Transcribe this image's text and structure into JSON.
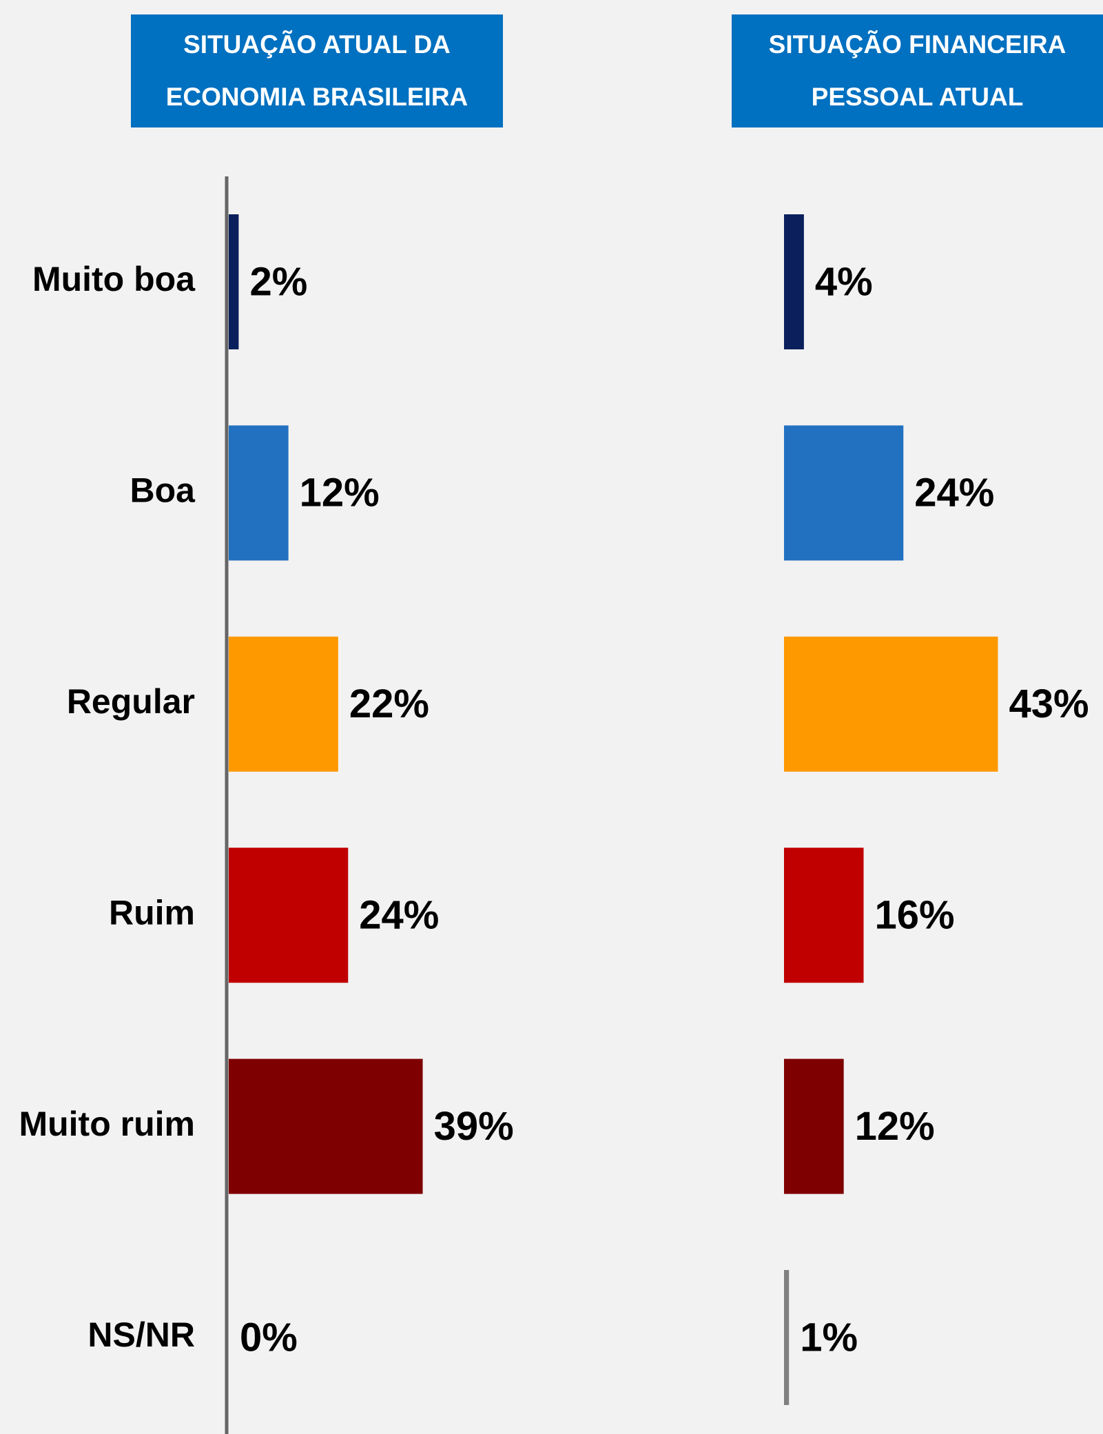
{
  "chart_data": {
    "type": "bar",
    "orientation": "horizontal",
    "categories": [
      "Muito boa",
      "Boa",
      "Regular",
      "Ruim",
      "Muito ruim",
      "NS/NR"
    ],
    "colors": [
      "#0a1f5c",
      "#2271c1",
      "#ff9900",
      "#c00000",
      "#7f0000",
      "#808080"
    ],
    "series": [
      {
        "name": "SITUAÇÃO ATUAL DA ECONOMIA BRASILEIRA",
        "values": [
          2,
          12,
          22,
          24,
          39,
          0
        ],
        "value_labels": [
          "2%",
          "12%",
          "22%",
          "24%",
          "39%",
          "0%"
        ]
      },
      {
        "name": "SITUAÇÃO FINANCEIRA PESSOAL ATUAL",
        "values": [
          4,
          24,
          43,
          16,
          12,
          1
        ],
        "value_labels": [
          "4%",
          "24%",
          "43%",
          "16%",
          "12%",
          "1%"
        ]
      }
    ]
  }
}
